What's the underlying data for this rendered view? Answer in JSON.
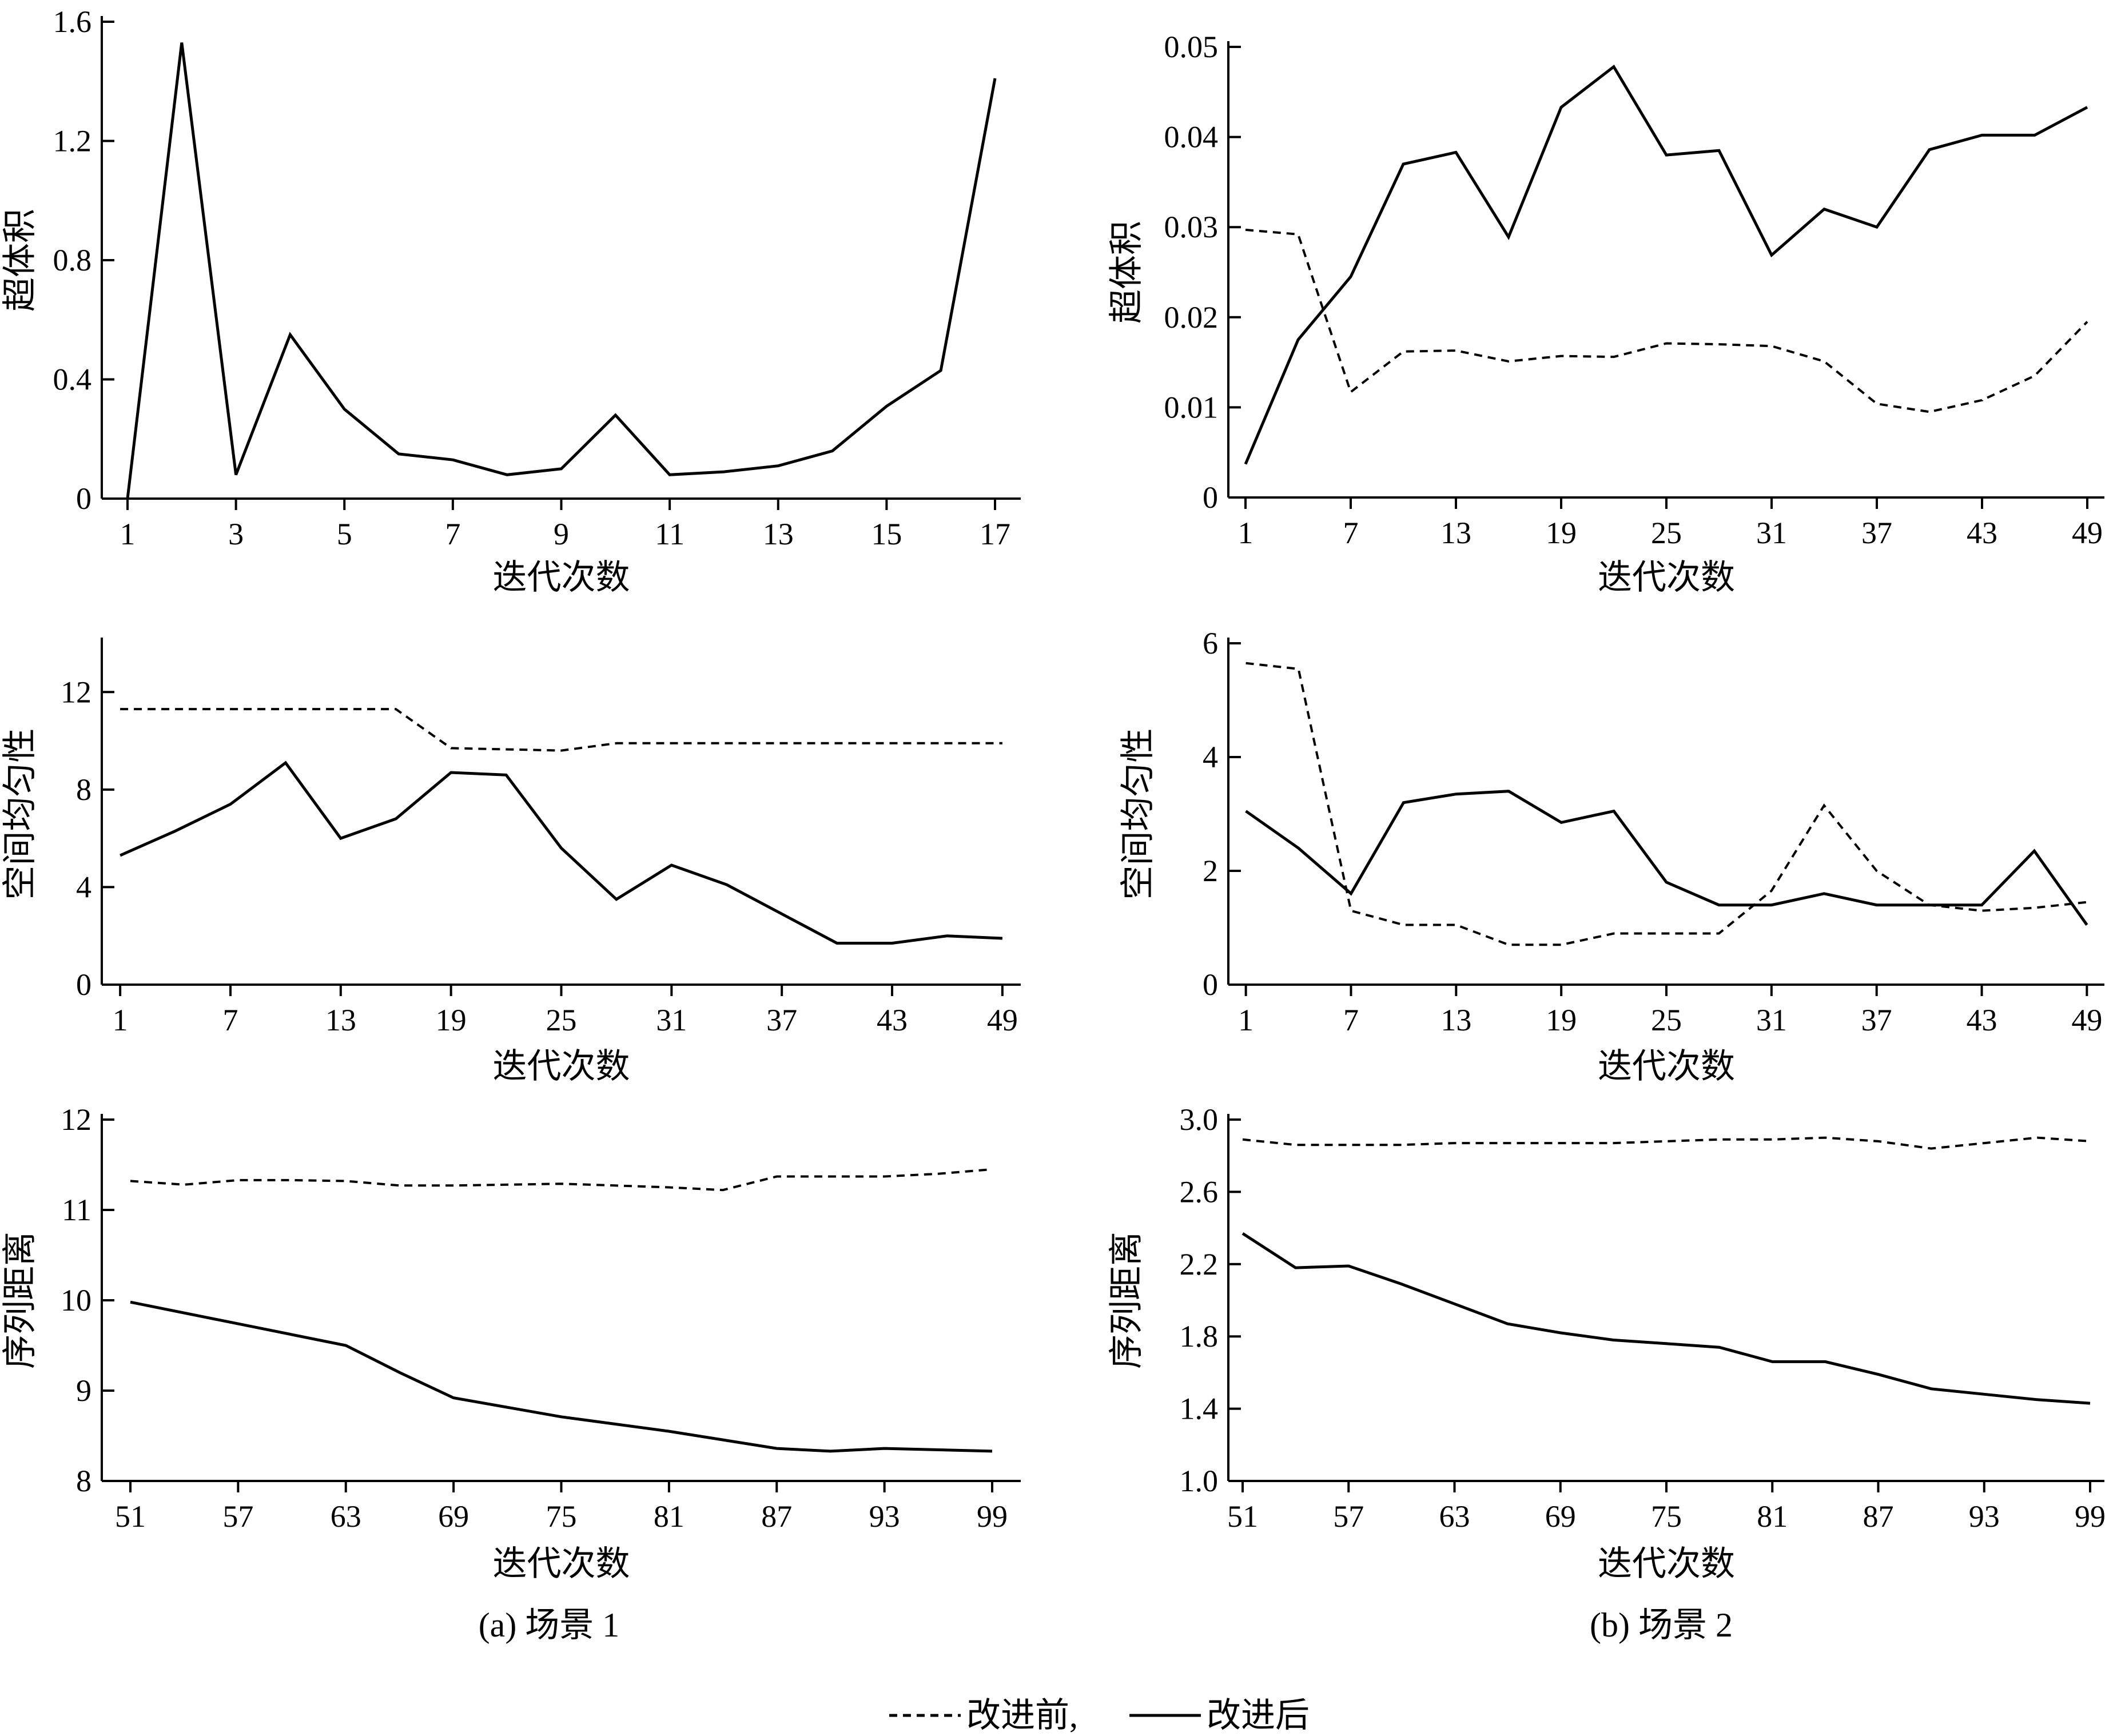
{
  "figure": {
    "captions": [
      "(a)  场景 1",
      "(b)  场景 2"
    ],
    "legend": [
      {
        "label": "改进前,",
        "style": "dashed"
      },
      {
        "label": "改进后",
        "style": "solid"
      }
    ]
  },
  "chart_data": [
    {
      "id": "a1",
      "type": "line",
      "panel": "(a) 场景 1",
      "xlabel": "迭代次数",
      "ylabel": "超体积",
      "ylim": [
        0,
        1.6
      ],
      "yticks": [
        "0",
        "0.4",
        "0.8",
        "1.2",
        "1.6"
      ],
      "xlim": [
        1,
        17
      ],
      "xticks": [
        "1",
        "3",
        "5",
        "7",
        "9",
        "11",
        "13",
        "15",
        "17"
      ],
      "series": [
        {
          "name": "改进前",
          "style": "dashed",
          "x": [
            1,
            17
          ],
          "values": [
            0,
            0
          ]
        },
        {
          "name": "改进后",
          "style": "solid",
          "x": [
            1,
            2,
            3,
            4,
            5,
            6,
            7,
            8,
            9,
            10,
            11,
            12,
            13,
            14,
            15,
            16,
            17
          ],
          "values": [
            0,
            1.53,
            0.08,
            0.55,
            0.3,
            0.15,
            0.13,
            0.08,
            0.1,
            0.28,
            0.08,
            0.09,
            0.11,
            0.16,
            0.31,
            0.43,
            1.41
          ]
        }
      ]
    },
    {
      "id": "b1",
      "type": "line",
      "panel": "(b) 场景 2",
      "xlabel": "迭代次数",
      "ylabel": "超体积",
      "ylim": [
        0,
        0.05
      ],
      "yticks": [
        "0",
        "0.01",
        "0.02",
        "0.03",
        "0.04",
        "0.05"
      ],
      "xlim": [
        1,
        49
      ],
      "xticks": [
        "1",
        "7",
        "13",
        "19",
        "25",
        "31",
        "37",
        "43",
        "49"
      ],
      "series": [
        {
          "name": "改进前",
          "style": "dashed",
          "x": [
            1,
            4,
            7,
            10,
            13,
            16,
            19,
            22,
            25,
            28,
            31,
            34,
            37,
            40,
            43,
            46,
            49
          ],
          "values": [
            0.0297,
            0.0292,
            0.0117,
            0.0162,
            0.0163,
            0.0151,
            0.0157,
            0.0156,
            0.0171,
            0.017,
            0.0168,
            0.0151,
            0.0104,
            0.0095,
            0.0108,
            0.0135,
            0.0195
          ]
        },
        {
          "name": "改进后",
          "style": "solid",
          "x": [
            1,
            4,
            7,
            10,
            13,
            16,
            19,
            22,
            25,
            28,
            31,
            34,
            37,
            40,
            43,
            46,
            49
          ],
          "values": [
            0.0037,
            0.0175,
            0.0245,
            0.037,
            0.0383,
            0.0289,
            0.0433,
            0.0478,
            0.038,
            0.0385,
            0.0269,
            0.032,
            0.03,
            0.0386,
            0.0402,
            0.0402,
            0.0433
          ]
        }
      ]
    },
    {
      "id": "a2",
      "type": "line",
      "panel": "(a) 场景 1",
      "xlabel": "迭代次数",
      "ylabel": "空间均匀性",
      "ylim": [
        0,
        14
      ],
      "yticks": [
        "0",
        "4",
        "8",
        "12"
      ],
      "xlim": [
        0,
        50
      ],
      "xticks": [
        "1",
        "7",
        "13",
        "19",
        "25",
        "31",
        "37",
        "43",
        "49"
      ],
      "series": [
        {
          "name": "改进前",
          "style": "dashed",
          "x": [
            1,
            7,
            13,
            16,
            19,
            22,
            25,
            28,
            31,
            34,
            37,
            40,
            43,
            46,
            49
          ],
          "values": [
            11.3,
            11.3,
            11.3,
            11.3,
            9.7,
            9.65,
            9.6,
            9.9,
            9.9,
            9.9,
            9.9,
            9.9,
            9.9,
            9.9,
            9.9
          ]
        },
        {
          "name": "改进后",
          "style": "solid",
          "x": [
            1,
            4,
            7,
            10,
            13,
            16,
            19,
            22,
            25,
            28,
            31,
            34,
            37,
            40,
            43,
            46,
            49
          ],
          "values": [
            5.3,
            6.3,
            7.4,
            9.1,
            6.0,
            6.8,
            8.7,
            8.6,
            5.6,
            3.5,
            4.9,
            4.1,
            2.9,
            1.7,
            1.7,
            2.0,
            1.9
          ]
        }
      ]
    },
    {
      "id": "b2",
      "type": "line",
      "panel": "(b) 场景 2",
      "xlabel": "迭代次数",
      "ylabel": "空间均匀性",
      "ylim": [
        0,
        6
      ],
      "yticks": [
        "0",
        "2",
        "4",
        "6"
      ],
      "xlim": [
        0,
        50
      ],
      "xticks": [
        "1",
        "7",
        "13",
        "19",
        "25",
        "31",
        "37",
        "43",
        "49"
      ],
      "series": [
        {
          "name": "改进前",
          "style": "dashed",
          "x": [
            1,
            4,
            7,
            10,
            13,
            16,
            19,
            22,
            25,
            28,
            31,
            34,
            37,
            40,
            43,
            46,
            49
          ],
          "values": [
            5.65,
            5.55,
            1.3,
            1.05,
            1.05,
            0.7,
            0.7,
            0.9,
            0.9,
            0.9,
            1.65,
            3.15,
            2.0,
            1.4,
            1.3,
            1.35,
            1.45
          ]
        },
        {
          "name": "改进后",
          "style": "solid",
          "x": [
            1,
            4,
            7,
            10,
            13,
            16,
            19,
            22,
            25,
            28,
            31,
            34,
            37,
            40,
            43,
            46,
            49
          ],
          "values": [
            3.05,
            2.4,
            1.6,
            3.2,
            3.35,
            3.4,
            2.85,
            3.05,
            1.8,
            1.4,
            1.4,
            1.6,
            1.4,
            1.4,
            1.4,
            2.35,
            1.05
          ]
        }
      ]
    },
    {
      "id": "a3",
      "type": "line",
      "panel": "(a) 场景 1",
      "xlabel": "迭代次数",
      "ylabel": "序列距离",
      "ylim": [
        8,
        12
      ],
      "yticks": [
        "8",
        "9",
        "10",
        "11",
        "12"
      ],
      "xlim": [
        51,
        99
      ],
      "xticks": [
        "51",
        "57",
        "63",
        "69",
        "75",
        "81",
        "87",
        "93",
        "99"
      ],
      "series": [
        {
          "name": "改进前",
          "style": "dashed",
          "x": [
            51,
            54,
            57,
            60,
            63,
            66,
            69,
            72,
            75,
            78,
            81,
            84,
            87,
            90,
            93,
            96,
            99
          ],
          "values": [
            11.32,
            11.28,
            11.33,
            11.33,
            11.32,
            11.27,
            11.27,
            11.28,
            11.29,
            11.27,
            11.25,
            11.22,
            11.37,
            11.37,
            11.37,
            11.4,
            11.45
          ]
        },
        {
          "name": "改进后",
          "style": "solid",
          "x": [
            51,
            57,
            63,
            66,
            69,
            75,
            81,
            87,
            90,
            93,
            99
          ],
          "values": [
            9.98,
            9.74,
            9.5,
            9.2,
            8.92,
            8.71,
            8.55,
            8.36,
            8.33,
            8.36,
            8.33
          ]
        }
      ]
    },
    {
      "id": "b3",
      "type": "line",
      "panel": "(b) 场景 2",
      "xlabel": "迭代次数",
      "ylabel": "序列距离",
      "ylim": [
        1.0,
        3.0
      ],
      "yticks": [
        "1.0",
        "1.4",
        "1.8",
        "2.2",
        "2.6",
        "3.0"
      ],
      "xlim": [
        51,
        99
      ],
      "xticks": [
        "51",
        "57",
        "63",
        "69",
        "75",
        "81",
        "87",
        "93",
        "99"
      ],
      "series": [
        {
          "name": "改进前",
          "style": "dashed",
          "x": [
            51,
            54,
            57,
            60,
            63,
            66,
            69,
            72,
            75,
            78,
            81,
            84,
            87,
            90,
            93,
            96,
            99
          ],
          "values": [
            2.89,
            2.86,
            2.86,
            2.86,
            2.87,
            2.87,
            2.87,
            2.87,
            2.88,
            2.89,
            2.89,
            2.9,
            2.88,
            2.84,
            2.87,
            2.9,
            2.88
          ]
        },
        {
          "name": "改进后",
          "style": "solid",
          "x": [
            51,
            54,
            57,
            60,
            63,
            66,
            69,
            72,
            75,
            78,
            81,
            84,
            87,
            90,
            93,
            96,
            99
          ],
          "values": [
            2.37,
            2.18,
            2.19,
            2.09,
            1.98,
            1.87,
            1.82,
            1.78,
            1.76,
            1.74,
            1.66,
            1.66,
            1.59,
            1.51,
            1.48,
            1.45,
            1.43
          ]
        }
      ]
    }
  ]
}
